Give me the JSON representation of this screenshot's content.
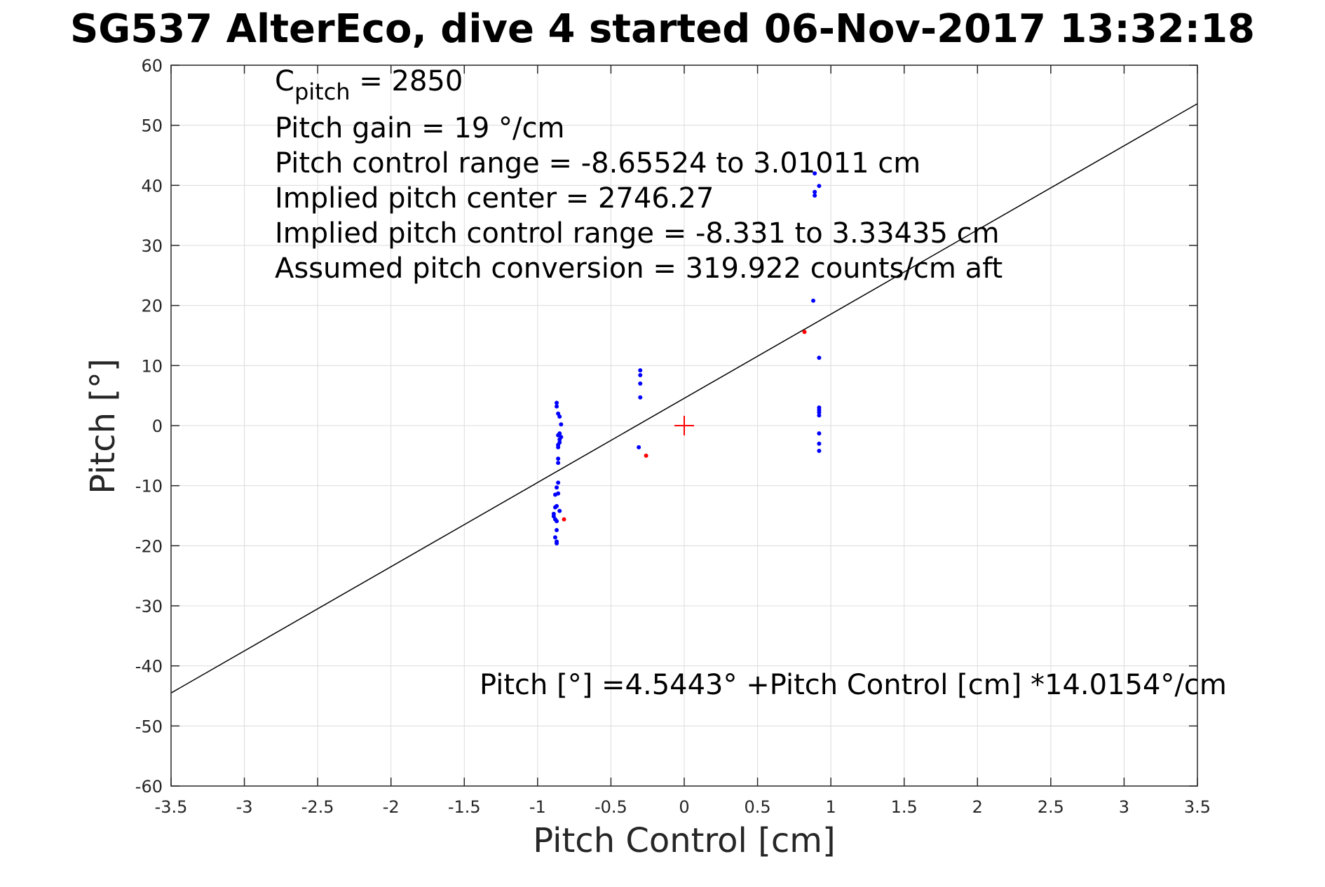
{
  "chart_data": {
    "type": "scatter",
    "title": "SG537 AlterEco, dive 4 started 06-Nov-2017 13:32:18",
    "xlabel": "Pitch Control [cm]",
    "ylabel": "Pitch [°]",
    "xlim": [
      -3.5,
      3.5
    ],
    "ylim": [
      -60,
      60
    ],
    "x_ticks": [
      -3.5,
      -3,
      -2.5,
      -2,
      -1.5,
      -1,
      -0.5,
      0,
      0.5,
      1,
      1.5,
      2,
      2.5,
      3,
      3.5
    ],
    "x_tick_labels": [
      "-3.5",
      "-3",
      "-2.5",
      "-2",
      "-1.5",
      "-1",
      "-0.5",
      "0",
      "0.5",
      "1",
      "1.5",
      "2",
      "2.5",
      "3",
      "3.5"
    ],
    "y_ticks": [
      60,
      50,
      40,
      30,
      20,
      10,
      0,
      -10,
      -20,
      -30,
      -40,
      -50,
      -60
    ],
    "y_tick_labels": [
      "60",
      "50",
      "40",
      "30",
      "20",
      "10",
      "0",
      "-10",
      "-20",
      "-30",
      "-40",
      "-50",
      "-60"
    ],
    "grid": true,
    "annotations": {
      "cpitch_prefix": "C",
      "cpitch_subscript": "pitch",
      "cpitch_suffix": " = 2850",
      "lines": [
        "Pitch gain = 19 °/cm",
        "Pitch control range = -8.65524 to 3.01011 cm",
        "Implied pitch center = 2746.27",
        "Implied pitch control range = -8.331 to 3.33435 cm",
        "Assumed pitch conversion = 319.922 counts/cm aft"
      ],
      "fit_equation": "Pitch [°] =4.5443° +Pitch Control [cm] *14.0154°/cm"
    },
    "fit_line": {
      "intercept": 4.5443,
      "slope": 14.0154
    },
    "center_marker": {
      "x": 0,
      "y": 0,
      "color": "#ff0000",
      "marker": "plus"
    },
    "series": [
      {
        "color": "#0000ff",
        "points": [
          [
            -0.87,
            3.8
          ],
          [
            -0.87,
            3.2
          ],
          [
            -0.86,
            2.0
          ],
          [
            -0.85,
            1.5
          ],
          [
            -0.84,
            0.2
          ],
          [
            -0.85,
            -1.3
          ],
          [
            -0.86,
            -1.6
          ],
          [
            -0.84,
            -1.9
          ],
          [
            -0.85,
            -2.3
          ],
          [
            -0.85,
            -2.8
          ],
          [
            -0.86,
            -3.2
          ],
          [
            -0.86,
            -3.6
          ],
          [
            -0.86,
            -5.5
          ],
          [
            -0.86,
            -6.2
          ],
          [
            -0.86,
            -9.5
          ],
          [
            -0.87,
            -10.3
          ],
          [
            -0.88,
            -11.5
          ],
          [
            -0.86,
            -11.3
          ],
          [
            -0.88,
            -13.6
          ],
          [
            -0.87,
            -13.4
          ],
          [
            -0.85,
            -14.2
          ],
          [
            -0.89,
            -14.7
          ],
          [
            -0.89,
            -15.1
          ],
          [
            -0.88,
            -15.6
          ],
          [
            -0.87,
            -15.9
          ],
          [
            -0.87,
            -17.4
          ],
          [
            -0.88,
            -18.6
          ],
          [
            -0.87,
            -19.3
          ],
          [
            -0.87,
            -19.6
          ],
          [
            -0.3,
            9.2
          ],
          [
            -0.3,
            8.4
          ],
          [
            -0.3,
            7.0
          ],
          [
            -0.3,
            4.7
          ],
          [
            -0.31,
            -3.6
          ],
          [
            0.89,
            42.0
          ],
          [
            0.89,
            38.9
          ],
          [
            0.89,
            38.3
          ],
          [
            0.92,
            39.9
          ],
          [
            0.88,
            20.8
          ],
          [
            0.92,
            11.3
          ],
          [
            0.92,
            3.0
          ],
          [
            0.92,
            2.6
          ],
          [
            0.92,
            2.2
          ],
          [
            0.92,
            1.7
          ],
          [
            0.92,
            -1.3
          ],
          [
            0.92,
            -3.0
          ],
          [
            0.92,
            -4.2
          ]
        ]
      },
      {
        "color": "#ff0000",
        "points": [
          [
            -0.82,
            -15.6
          ],
          [
            -0.26,
            -5.0
          ],
          [
            0.82,
            15.6
          ]
        ]
      }
    ]
  }
}
